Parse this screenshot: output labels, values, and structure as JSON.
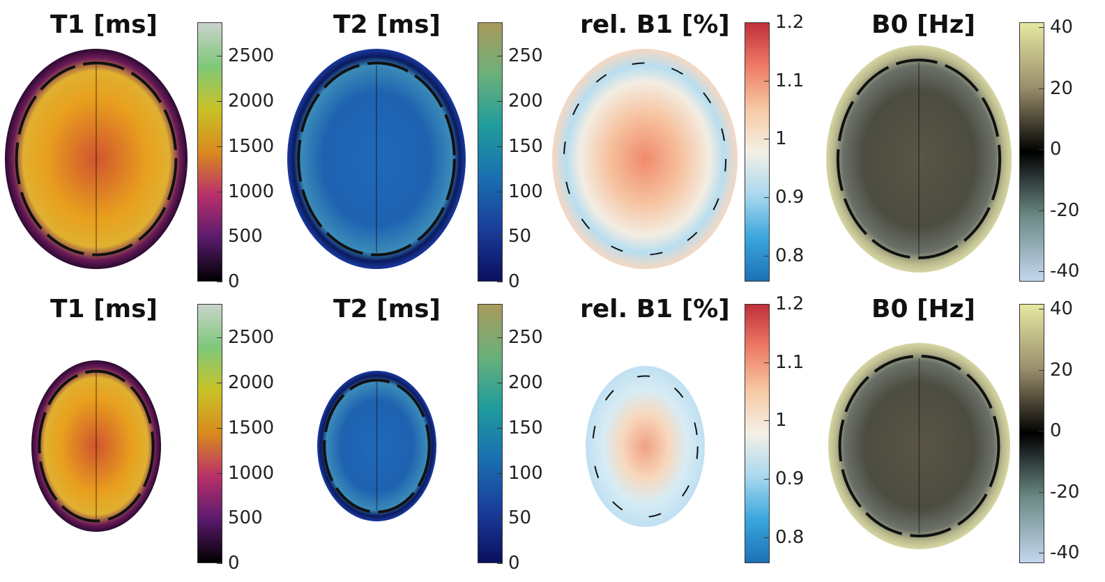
{
  "figure": {
    "rows": [
      {
        "row": "top",
        "panels": [
          {
            "key": "t1",
            "title": "T1 [ms]",
            "ticks": [
              "2500",
              "2000",
              "1500",
              "1000",
              "500",
              "0"
            ]
          },
          {
            "key": "t2",
            "title": "T2 [ms]",
            "ticks": [
              "250",
              "200",
              "150",
              "100",
              "50",
              "0"
            ]
          },
          {
            "key": "b1",
            "title": "rel. B1 [%]",
            "ticks": [
              "1.2",
              "1.1",
              "1",
              "0.9",
              "0.8"
            ]
          },
          {
            "key": "b0",
            "title": "B0 [Hz]",
            "ticks": [
              "40",
              "20",
              "0",
              "-20",
              "-40"
            ]
          }
        ]
      },
      {
        "row": "bottom",
        "panels": [
          {
            "key": "t1",
            "title": "T1 [ms]",
            "ticks": [
              "2500",
              "2000",
              "1500",
              "1000",
              "500",
              "0"
            ]
          },
          {
            "key": "t2",
            "title": "T2 [ms]",
            "ticks": [
              "250",
              "200",
              "150",
              "100",
              "50",
              "0"
            ]
          },
          {
            "key": "b1",
            "title": "rel. B1 [%]",
            "ticks": [
              "1.2",
              "1.1",
              "1",
              "0.9",
              "0.8"
            ]
          },
          {
            "key": "b0",
            "title": "B0 [Hz]",
            "ticks": [
              "40",
              "20",
              "0",
              "-20",
              "-40"
            ]
          }
        ]
      }
    ]
  },
  "colormaps": {
    "t1": [
      "#c9d3cc",
      "#7ec87a",
      "#c8c226",
      "#d98a1e",
      "#b8306a",
      "#5a1a6e",
      "#000000"
    ],
    "t2": [
      "#a99a5c",
      "#6bb07a",
      "#1f9c9c",
      "#1a6fb0",
      "#1a3d9a",
      "#0b0f5e"
    ],
    "b1": [
      "#c0303a",
      "#ee7b66",
      "#f6c9a4",
      "#f4f0e6",
      "#a9d8ee",
      "#3aa6dc",
      "#1c71b5"
    ],
    "b0": [
      "#e5e8a2",
      "#9a8e6c",
      "#000000",
      "#6c8a86",
      "#c4d6ee"
    ]
  }
}
